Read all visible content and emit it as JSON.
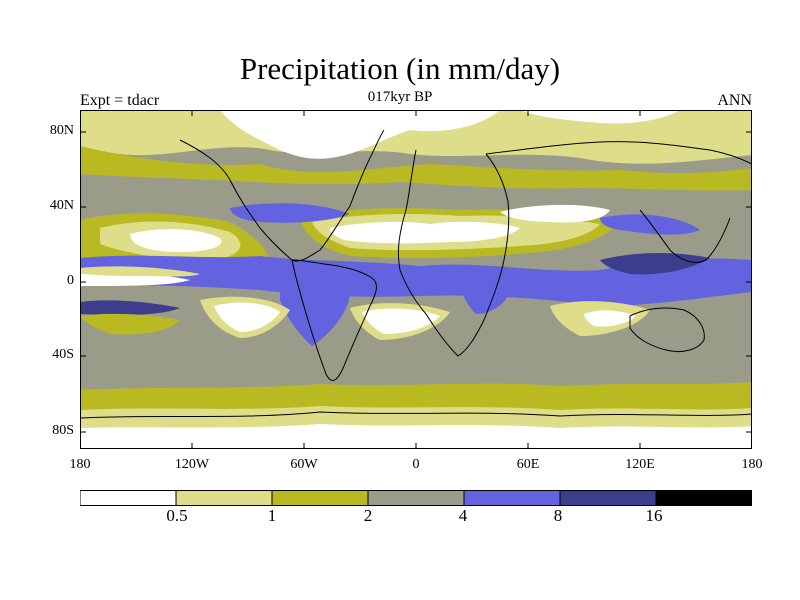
{
  "title": "Precipitation (in mm/day)",
  "subtitle": "017kyr BP",
  "experiment_label": "Expt = tdacr",
  "season_label": "ANN",
  "lat_labels": [
    "80N",
    "40N",
    "0",
    "40S",
    "80S"
  ],
  "lon_labels": [
    "180",
    "120W",
    "60W",
    "0",
    "60E",
    "120E",
    "180"
  ],
  "colorbar": {
    "colors": [
      "#ffffff",
      "#dede8a",
      "#b9ba22",
      "#9b9b8a",
      "#6363e0",
      "#3d3d8e",
      "#000000"
    ],
    "labels": [
      "0.5",
      "1",
      "2",
      "4",
      "8",
      "16"
    ]
  },
  "map_colors": {
    "very_dry": "#ffffff",
    "dry": "#dede8a",
    "moderate": "#b9ba22",
    "wet": "#9b9b8a",
    "very_wet": "#6363e0",
    "extreme": "#3d3d8e"
  }
}
